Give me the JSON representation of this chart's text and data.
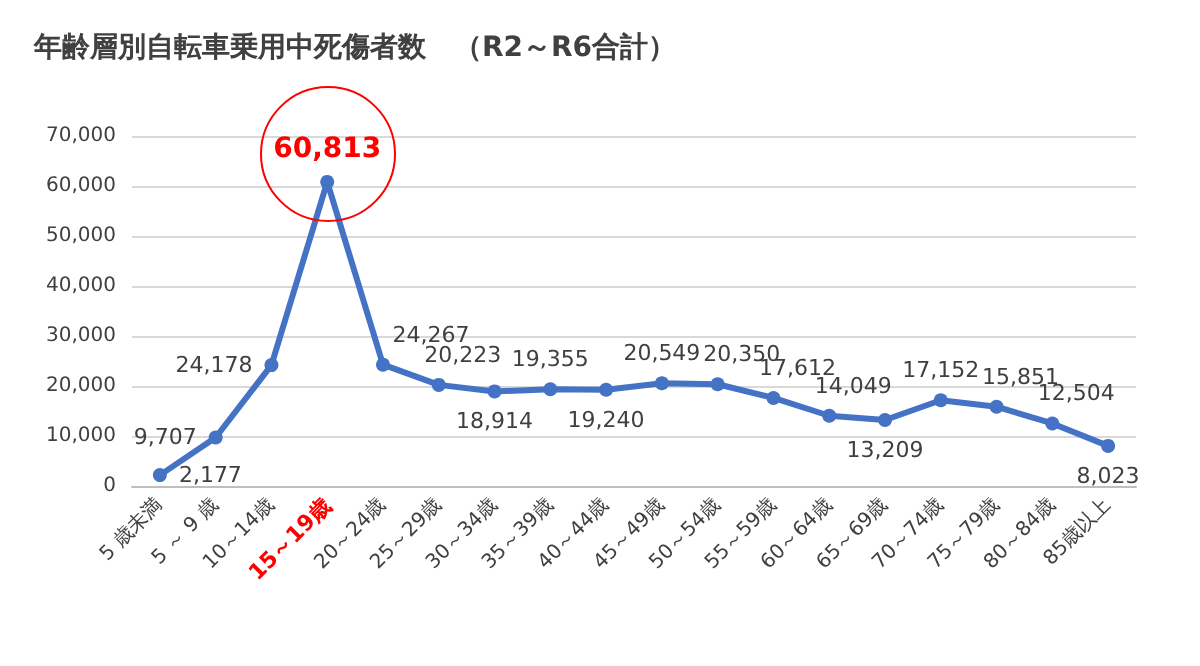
{
  "chart_data": {
    "type": "line",
    "title": "年齢層別自転車乗用中死傷者数　（R2～R6合計）",
    "categories": [
      "5 歳未満",
      "5 ～ 9 歳",
      "10～14歳",
      "15～19歳",
      "20～24歳",
      "25～29歳",
      "30～34歳",
      "35～39歳",
      "40～44歳",
      "45～49歳",
      "50～54歳",
      "55～59歳",
      "60～64歳",
      "65～69歳",
      "70～74歳",
      "75～79歳",
      "80～84歳",
      "85歳以上"
    ],
    "series": [
      {
        "color": "#4472c4",
        "values": [
          2177,
          9707,
          24178,
          60813,
          24267,
          20223,
          18914,
          19355,
          19240,
          20549,
          20350,
          17612,
          14049,
          13209,
          17152,
          15851,
          12504,
          8023
        ],
        "value_labels": [
          "2,177",
          "9,707",
          "24,178",
          "60,813",
          "24,267",
          "20,223",
          "18,914",
          "19,355",
          "19,240",
          "20,549",
          "20,350",
          "17,612",
          "14,049",
          "13,209",
          "17,152",
          "15,851",
          "12,504",
          "8,023"
        ]
      }
    ],
    "ylim": [
      0,
      70000
    ],
    "yticks": [
      0,
      {
        "value": 10000,
        "label": "10,000"
      },
      {
        "value": 20000,
        "label": "20,000"
      },
      {
        "value": 30000,
        "label": "30,000"
      },
      {
        "value": 40000,
        "label": "40,000"
      },
      {
        "value": 50000,
        "label": "50,000"
      },
      {
        "value": 60000,
        "label": "60,000"
      },
      {
        "value": 70000,
        "label": "70,000"
      }
    ],
    "grid": "y",
    "marker": "circle",
    "line_style": "solid"
  }
}
